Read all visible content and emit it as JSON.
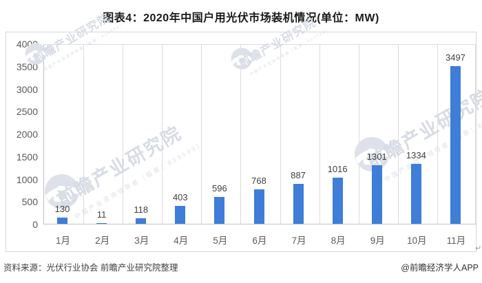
{
  "title": "图表4：2020年中国户用光伏市场装机情况(单位：MW)",
  "chart_data": {
    "type": "bar",
    "title": "图表4：2020年中国户用光伏市场装机情况(单位：MW)",
    "categories": [
      "1月",
      "2月",
      "3月",
      "4月",
      "5月",
      "6月",
      "7月",
      "8月",
      "9月",
      "10月",
      "11月"
    ],
    "values": [
      130,
      11,
      118,
      403,
      596,
      768,
      887,
      1016,
      1301,
      1334,
      3497
    ],
    "xlabel": "",
    "ylabel": "",
    "unit": "MW",
    "ylim": [
      0,
      4000
    ],
    "yticks": [
      0,
      500,
      1000,
      1500,
      2000,
      2500,
      3000,
      3500,
      4000
    ],
    "grid": "vertical",
    "legend": "none",
    "bar_color": "#3E7DD8",
    "value_labels": true
  },
  "footer": {
    "source": "资料来源：光伏行业协会 前瞻产业研究院整理",
    "credit": "@前瞻经济学人APP"
  },
  "watermark": {
    "brand": "前瞻产业研究院",
    "tagline": "中国产业咨询领导者（股票：839599）",
    "icon": "camera-logo-icon"
  },
  "misc": {
    "return_mark": "↵"
  }
}
